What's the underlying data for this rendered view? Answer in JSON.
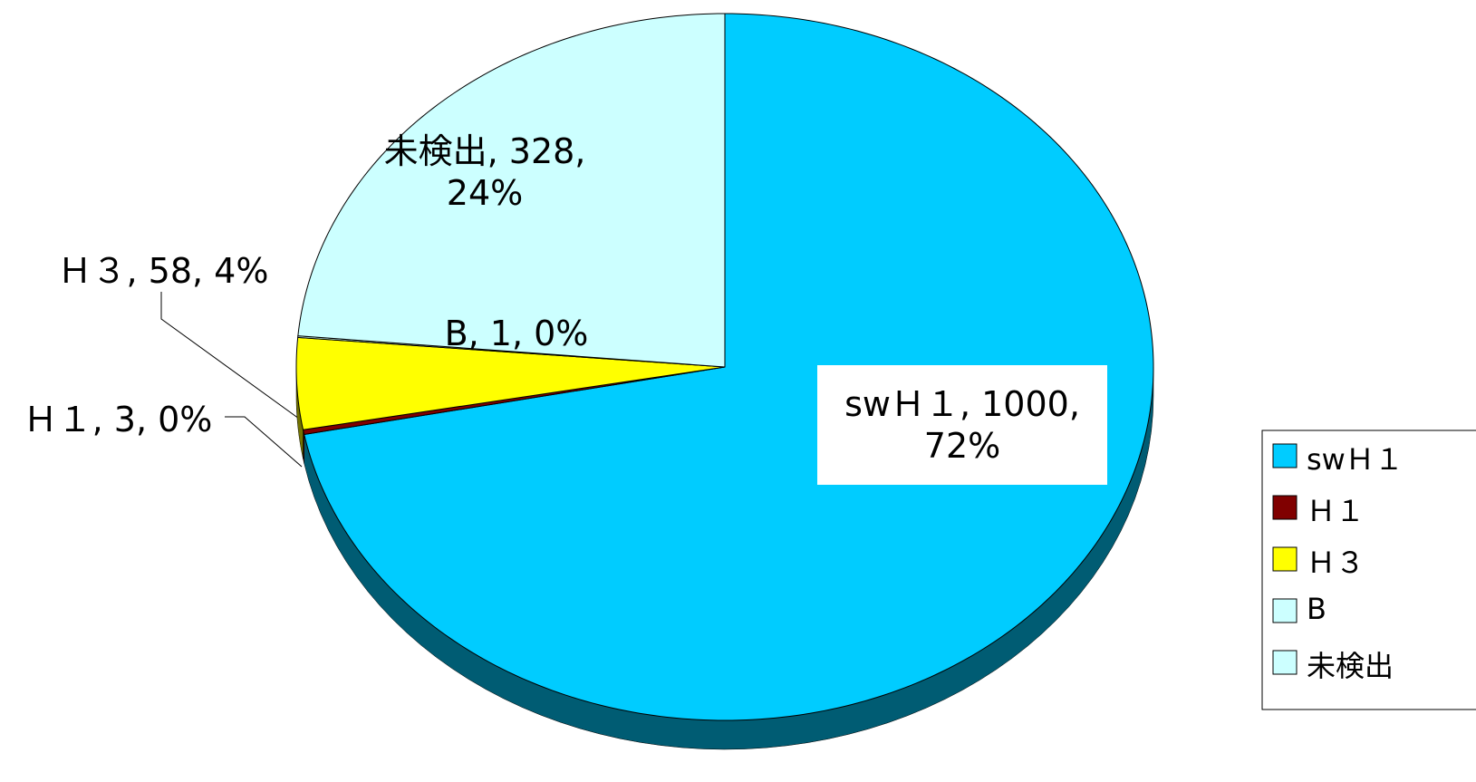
{
  "chart_data": {
    "type": "pie",
    "categories": [
      "swＨ１",
      "Ｈ１",
      "Ｈ３",
      "B",
      "未検出"
    ],
    "values": [
      1000,
      3,
      58,
      1,
      328
    ],
    "value_labels": [
      "swＨ１, 1000, 72%",
      "Ｈ１, 3, 0%",
      "Ｈ３, 58, 4%",
      "B, 1, 0%",
      "未検出, 328, 24%"
    ],
    "colors": [
      "#00ccff",
      "#800000",
      "#ffff00",
      "#ccffff",
      "#ccffff"
    ],
    "legend": "right"
  }
}
